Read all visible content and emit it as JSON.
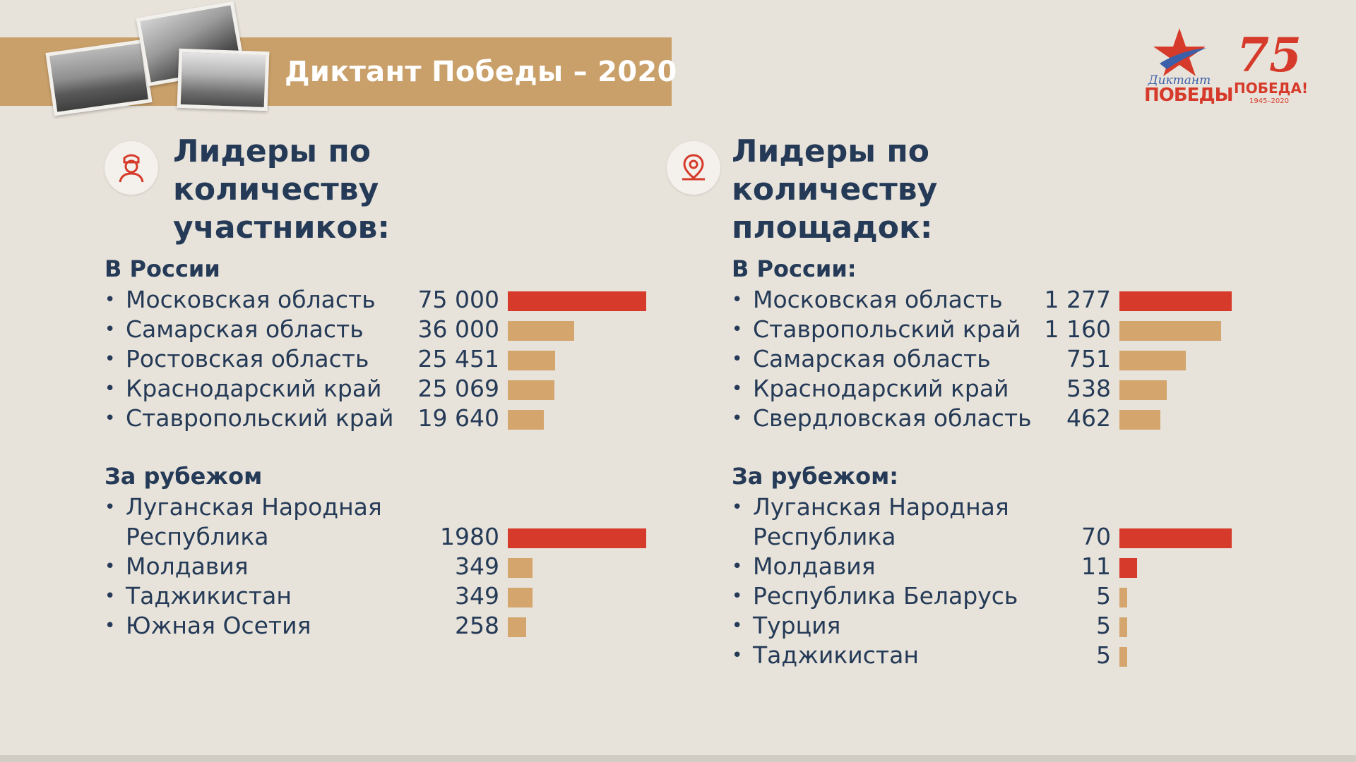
{
  "header": {
    "title": "Диктант Победы – 2020"
  },
  "logos": {
    "dictant_script": "Диктант",
    "dictant_word": "ПОБЕДЫ",
    "anniversary_number": "75",
    "anniversary_word": "ПОБЕДА!",
    "anniversary_years": "1945–2020"
  },
  "colors": {
    "highlight_bar": "#d63a2a",
    "regular_bar": "#d4a56c",
    "header_band": "#c9a06a",
    "text": "#243a57"
  },
  "icons": {
    "participants": "person-avatar-icon",
    "venues": "location-pin-icon"
  },
  "chart_data": [
    {
      "type": "bar",
      "orientation": "horizontal",
      "title": "Лидеры по количеству участников:",
      "groups": [
        {
          "name": "В России",
          "categories": [
            "Московская область",
            "Самарская область",
            "Ростовская область",
            "Краснодарский край",
            "Ставропольский край"
          ],
          "values": [
            75000,
            36000,
            25451,
            25069,
            19640
          ],
          "value_labels": [
            "75 000",
            "36 000",
            "25 451",
            "25 069",
            "19 640"
          ],
          "highlight": [
            true,
            false,
            false,
            false,
            false
          ],
          "scale_max": 75000
        },
        {
          "name": "За рубежом",
          "categories": [
            [
              "Луганская  Народная",
              "Республика"
            ],
            "Молдавия",
            "Таджикистан",
            "Южная Осетия"
          ],
          "values": [
            1980,
            349,
            349,
            258
          ],
          "value_labels": [
            "1980",
            "349",
            "349",
            "258"
          ],
          "highlight": [
            true,
            false,
            false,
            false
          ],
          "scale_max": 1980
        }
      ]
    },
    {
      "type": "bar",
      "orientation": "horizontal",
      "title": "Лидеры по количеству площадок:",
      "groups": [
        {
          "name": "В России:",
          "categories": [
            "Московская область",
            "Ставропольский край",
            "Самарская область",
            "Краснодарский край",
            "Свердловская область"
          ],
          "values": [
            1277,
            1160,
            751,
            538,
            462
          ],
          "value_labels": [
            "1 277",
            "1 160",
            "751",
            "538",
            "462"
          ],
          "highlight": [
            true,
            false,
            false,
            false,
            false
          ],
          "scale_max": 1277
        },
        {
          "name": "За рубежом:",
          "categories": [
            [
              "Луганская  Народная",
              "Республика"
            ],
            "Молдавия",
            "Республика Беларусь",
            "Турция",
            "Таджикистан"
          ],
          "values": [
            70,
            11,
            5,
            5,
            5
          ],
          "value_labels": [
            "70",
            "11",
            "5",
            "5",
            "5"
          ],
          "highlight": [
            true,
            true,
            false,
            false,
            false
          ],
          "scale_max": 70
        }
      ]
    }
  ]
}
